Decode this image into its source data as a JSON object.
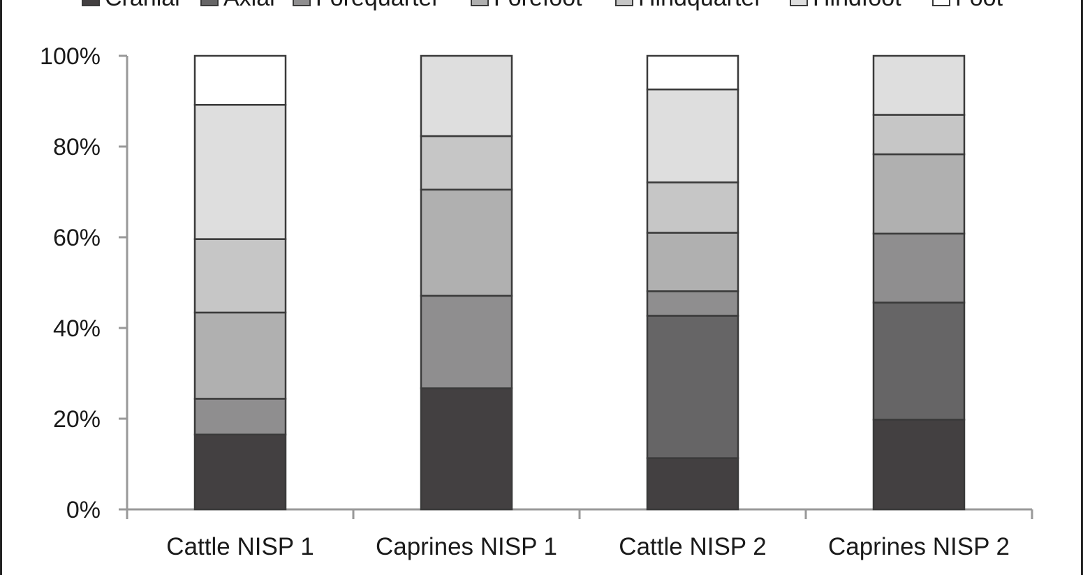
{
  "chart_data": {
    "type": "bar",
    "stacked": true,
    "percent_stacked": true,
    "categories": [
      "Cattle NISP 1",
      "Caprines NISP 1",
      "Cattle NISP 2",
      "Caprines NISP 2"
    ],
    "series": [
      {
        "name": "Cranial",
        "color": "#434041",
        "values": [
          16.5,
          26.7,
          11.3,
          19.8
        ]
      },
      {
        "name": "Axial",
        "color": "#666566",
        "values": [
          0,
          0,
          31.4,
          25.8
        ]
      },
      {
        "name": "Forequarter",
        "color": "#8f8e8f",
        "values": [
          7.9,
          20.4,
          5.4,
          15.2
        ]
      },
      {
        "name": "Forefoot",
        "color": "#b0b0b0",
        "values": [
          19.0,
          23.4,
          12.9,
          17.5
        ]
      },
      {
        "name": "Hindquarter",
        "color": "#c6c6c6",
        "values": [
          16.2,
          11.8,
          11.1,
          8.7
        ]
      },
      {
        "name": "Hindfoot",
        "color": "#dedede",
        "values": [
          29.6,
          17.7,
          20.5,
          13.0
        ]
      },
      {
        "name": "Foot",
        "color": "#ffffff",
        "values": [
          10.8,
          0,
          7.4,
          0
        ]
      }
    ],
    "y_ticks": [
      "0%",
      "20%",
      "40%",
      "60%",
      "80%",
      "100%"
    ],
    "ylim": [
      0,
      100
    ],
    "legend_position": "top",
    "grid": false
  }
}
